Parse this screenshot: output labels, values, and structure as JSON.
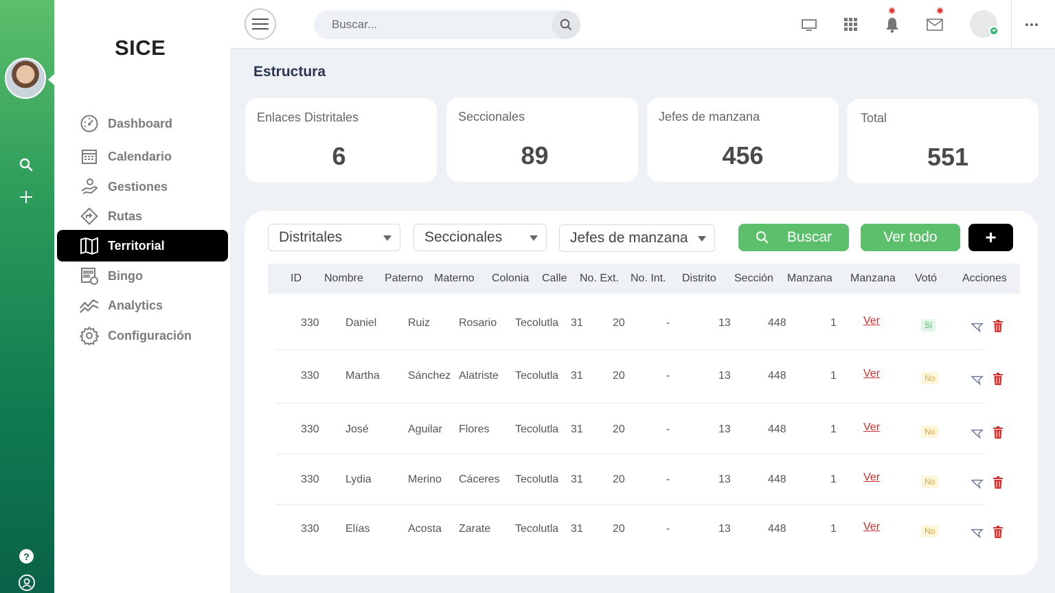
{
  "app": {
    "brand": "SICE"
  },
  "sidebar": {
    "items": [
      {
        "label": "Dashboard",
        "icon": "speedometer-icon"
      },
      {
        "label": "Calendario",
        "icon": "calendar-icon"
      },
      {
        "label": "Gestiones",
        "icon": "hand-coin-icon"
      },
      {
        "label": "Rutas",
        "icon": "route-sign-icon"
      },
      {
        "label": "Territorial",
        "icon": "map-icon",
        "active": true
      },
      {
        "label": "Bingo",
        "icon": "bingo-card-icon"
      },
      {
        "label": "Analytics",
        "icon": "analytics-icon"
      },
      {
        "label": "Configuración",
        "icon": "gear-icon"
      }
    ]
  },
  "header": {
    "search_placeholder": "Buscar..."
  },
  "page": {
    "title": "Estructura"
  },
  "stats": [
    {
      "label": "Enlaces Distritales",
      "value": "6"
    },
    {
      "label": "Seccionales",
      "value": "89"
    },
    {
      "label": "Jefes de manzana",
      "value": "456"
    },
    {
      "label": "Total",
      "value": "551"
    }
  ],
  "filters": {
    "distritales": "Distritales",
    "seccionales": "Seccionales",
    "jefes": "Jefes de manzana",
    "buscar": "Buscar",
    "ver_todo": "Ver todo",
    "add": "+"
  },
  "table": {
    "headers": [
      "ID",
      "Nombre",
      "Paterno",
      "Materno",
      "Colonia",
      "Calle",
      "No. Ext.",
      "No. Int.",
      "Distrito",
      "Sección",
      "Manzana",
      "Manzana",
      "Votó",
      "Acciones"
    ],
    "rows": [
      {
        "id": "330",
        "nombre": "Daniel",
        "paterno": "Ruiz",
        "materno": "Rosario",
        "colonia": "Tecolutla",
        "calle": "31",
        "ext": "20",
        "int": "-",
        "distrito": "13",
        "seccion": "448",
        "manzana": "1",
        "link": "Ver",
        "voto": "Sí"
      },
      {
        "id": "330",
        "nombre": "Martha",
        "paterno": "Sánchez",
        "materno": "Alatriste",
        "colonia": "Tecolutla",
        "calle": "31",
        "ext": "20",
        "int": "-",
        "distrito": "13",
        "seccion": "448",
        "manzana": "1",
        "link": "Ver",
        "voto": "No"
      },
      {
        "id": "330",
        "nombre": "José",
        "paterno": "Aguilar",
        "materno": "Flores",
        "colonia": "Tecolutla",
        "calle": "31",
        "ext": "20",
        "int": "-",
        "distrito": "13",
        "seccion": "448",
        "manzana": "1",
        "link": "Ver",
        "voto": "No"
      },
      {
        "id": "330",
        "nombre": "Lydia",
        "paterno": "Merino",
        "materno": "Cáceres",
        "colonia": "Tecolutla",
        "calle": "31",
        "ext": "20",
        "int": "-",
        "distrito": "13",
        "seccion": "448",
        "manzana": "1",
        "link": "Ver",
        "voto": "No"
      },
      {
        "id": "330",
        "nombre": "Elías",
        "paterno": "Acosta",
        "materno": "Zarate",
        "colonia": "Tecolutla",
        "calle": "31",
        "ext": "20",
        "int": "-",
        "distrito": "13",
        "seccion": "448",
        "manzana": "1",
        "link": "Ver",
        "voto": "No"
      }
    ]
  },
  "colors": {
    "accent_green": "#5cbf6b",
    "danger": "#d32f2f",
    "dark": "#000000"
  }
}
